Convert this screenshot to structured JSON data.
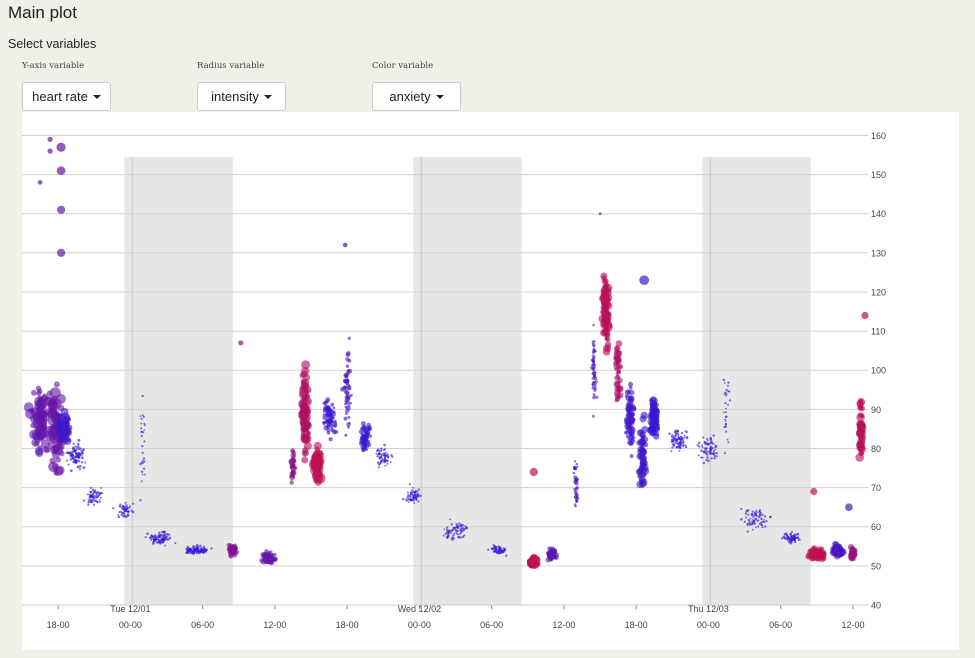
{
  "page": {
    "title": "Main plot",
    "section_label": "Select variables"
  },
  "controls": [
    {
      "label": "Y-axis variable",
      "value": "heart rate"
    },
    {
      "label": "Radius variable",
      "value": "intensity"
    },
    {
      "label": "Color variable",
      "value": "anxiety"
    }
  ],
  "chart_data": {
    "type": "scatter",
    "title": "",
    "xlabel": "",
    "ylabel": "",
    "x_range": [
      "2015-11-30T15:00",
      "2015-12-03T13:00"
    ],
    "ylim": [
      40,
      166
    ],
    "y_ticks": [
      40,
      50,
      60,
      70,
      80,
      90,
      100,
      110,
      120,
      130,
      140,
      150,
      160
    ],
    "x_ticks": [
      {
        "x": "2015-11-30T18:00",
        "label": "18-00"
      },
      {
        "x": "2015-12-01T00:00",
        "label": "00-00",
        "day_label": "Tue 12/01"
      },
      {
        "x": "2015-12-01T06:00",
        "label": "06-00"
      },
      {
        "x": "2015-12-01T12:00",
        "label": "12-00"
      },
      {
        "x": "2015-12-01T18:00",
        "label": "18-00"
      },
      {
        "x": "2015-12-02T00:00",
        "label": "00-00",
        "day_label": "Wed 12/02"
      },
      {
        "x": "2015-12-02T06:00",
        "label": "06-00"
      },
      {
        "x": "2015-12-02T12:00",
        "label": "12-00"
      },
      {
        "x": "2015-12-02T18:00",
        "label": "18-00"
      },
      {
        "x": "2015-12-03T00:00",
        "label": "00-00",
        "day_label": "Thu 12/03"
      },
      {
        "x": "2015-12-03T06:00",
        "label": "06-00"
      },
      {
        "x": "2015-12-03T12:00",
        "label": "12-00"
      }
    ],
    "night_bands": [
      [
        "2015-11-30T23:30",
        "2015-12-01T08:30"
      ],
      [
        "2015-12-01T23:30",
        "2015-12-02T08:30"
      ],
      [
        "2015-12-02T23:30",
        "2015-12-03T08:30"
      ]
    ],
    "colors": {
      "low_anxiety": "#2a1adf",
      "high_anxiety": "#c8104a",
      "night_band": "#e6e6e6",
      "grid": "#d0d0d0"
    },
    "clusters": [
      {
        "x": "2015-11-30T16:30",
        "hr": 88,
        "spread_hr": 12,
        "spread_min": 70,
        "n": 70,
        "size": 0.75,
        "anxiety": 0.35
      },
      {
        "x": "2015-11-30T17:45",
        "hr": 85,
        "spread_hr": 14,
        "spread_min": 40,
        "n": 60,
        "size": 0.8,
        "anxiety": 0.4
      },
      {
        "x": "2015-11-30T18:30",
        "hr": 85,
        "spread_hr": 6,
        "spread_min": 40,
        "n": 80,
        "size": 0.55,
        "anxiety": 0.15
      },
      {
        "x": "2015-11-30T19:30",
        "hr": 78,
        "spread_hr": 5,
        "spread_min": 60,
        "n": 80,
        "size": 0.15,
        "anxiety": 0.1
      },
      {
        "x": "2015-11-30T21:00",
        "hr": 68,
        "spread_hr": 3,
        "spread_min": 60,
        "n": 60,
        "size": 0.12,
        "anxiety": 0.05
      },
      {
        "x": "2015-11-30T23:30",
        "hr": 64,
        "spread_hr": 3,
        "spread_min": 60,
        "n": 50,
        "size": 0.12,
        "anxiety": 0.05
      },
      {
        "x": "2015-12-01T01:00",
        "hr": 80,
        "spread_hr": 18,
        "spread_min": 20,
        "n": 30,
        "size": 0.1,
        "anxiety": 0.05
      },
      {
        "x": "2015-12-01T02:30",
        "hr": 57,
        "spread_hr": 2,
        "spread_min": 90,
        "n": 70,
        "size": 0.15,
        "anxiety": 0.05
      },
      {
        "x": "2015-12-01T05:30",
        "hr": 54,
        "spread_hr": 1.5,
        "spread_min": 90,
        "n": 80,
        "size": 0.15,
        "anxiety": 0.05
      },
      {
        "x": "2015-12-01T08:30",
        "hr": 54,
        "spread_hr": 2,
        "spread_min": 30,
        "n": 60,
        "size": 0.35,
        "anxiety": 0.55
      },
      {
        "x": "2015-12-01T11:30",
        "hr": 52,
        "spread_hr": 2,
        "spread_min": 50,
        "n": 70,
        "size": 0.35,
        "anxiety": 0.35
      },
      {
        "x": "2015-12-01T13:30",
        "hr": 75,
        "spread_hr": 8,
        "spread_min": 15,
        "n": 30,
        "size": 0.4,
        "anxiety": 0.6
      },
      {
        "x": "2015-12-01T14:30",
        "hr": 90,
        "spread_hr": 15,
        "spread_min": 25,
        "n": 80,
        "size": 0.7,
        "anxiety": 0.85
      },
      {
        "x": "2015-12-01T15:30",
        "hr": 76,
        "spread_hr": 6,
        "spread_min": 20,
        "n": 50,
        "size": 0.85,
        "anxiety": 0.95
      },
      {
        "x": "2015-12-01T16:30",
        "hr": 88,
        "spread_hr": 6,
        "spread_min": 40,
        "n": 70,
        "size": 0.3,
        "anxiety": 0.1
      },
      {
        "x": "2015-12-01T18:00",
        "hr": 95,
        "spread_hr": 15,
        "spread_min": 25,
        "n": 50,
        "size": 0.3,
        "anxiety": 0.2
      },
      {
        "x": "2015-12-01T19:30",
        "hr": 83,
        "spread_hr": 5,
        "spread_min": 30,
        "n": 60,
        "size": 0.3,
        "anxiety": 0.1
      },
      {
        "x": "2015-12-01T21:00",
        "hr": 78,
        "spread_hr": 4,
        "spread_min": 60,
        "n": 60,
        "size": 0.12,
        "anxiety": 0.05
      },
      {
        "x": "2015-12-01T23:30",
        "hr": 68,
        "spread_hr": 3,
        "spread_min": 60,
        "n": 60,
        "size": 0.12,
        "anxiety": 0.05
      },
      {
        "x": "2015-12-02T03:00",
        "hr": 59,
        "spread_hr": 3,
        "spread_min": 90,
        "n": 70,
        "size": 0.12,
        "anxiety": 0.05
      },
      {
        "x": "2015-12-02T06:30",
        "hr": 54,
        "spread_hr": 2,
        "spread_min": 60,
        "n": 50,
        "size": 0.15,
        "anxiety": 0.05
      },
      {
        "x": "2015-12-02T09:30",
        "hr": 51,
        "spread_hr": 1.5,
        "spread_min": 30,
        "n": 80,
        "size": 0.5,
        "anxiety": 0.95
      },
      {
        "x": "2015-12-02T11:00",
        "hr": 53,
        "spread_hr": 2,
        "spread_min": 30,
        "n": 60,
        "size": 0.4,
        "anxiety": 0.3
      },
      {
        "x": "2015-12-02T13:00",
        "hr": 70,
        "spread_hr": 12,
        "spread_min": 15,
        "n": 30,
        "size": 0.25,
        "anxiety": 0.2
      },
      {
        "x": "2015-12-02T14:30",
        "hr": 100,
        "spread_hr": 15,
        "spread_min": 15,
        "n": 50,
        "size": 0.2,
        "anxiety": 0.2
      },
      {
        "x": "2015-12-02T15:30",
        "hr": 115,
        "spread_hr": 12,
        "spread_min": 20,
        "n": 110,
        "size": 0.6,
        "anxiety": 0.9
      },
      {
        "x": "2015-12-02T16:30",
        "hr": 100,
        "spread_hr": 12,
        "spread_min": 20,
        "n": 50,
        "size": 0.45,
        "anxiety": 0.8
      },
      {
        "x": "2015-12-02T17:30",
        "hr": 88,
        "spread_hr": 12,
        "spread_min": 30,
        "n": 70,
        "size": 0.45,
        "anxiety": 0.15
      },
      {
        "x": "2015-12-02T18:30",
        "hr": 78,
        "spread_hr": 12,
        "spread_min": 25,
        "n": 60,
        "size": 0.55,
        "anxiety": 0.15
      },
      {
        "x": "2015-12-02T19:30",
        "hr": 88,
        "spread_hr": 7,
        "spread_min": 25,
        "n": 110,
        "size": 0.5,
        "anxiety": 0.1
      },
      {
        "x": "2015-12-02T21:30",
        "hr": 82,
        "spread_hr": 4,
        "spread_min": 60,
        "n": 80,
        "size": 0.12,
        "anxiety": 0.05
      },
      {
        "x": "2015-12-03T00:00",
        "hr": 80,
        "spread_hr": 4,
        "spread_min": 60,
        "n": 70,
        "size": 0.12,
        "anxiety": 0.05
      },
      {
        "x": "2015-12-03T01:30",
        "hr": 90,
        "spread_hr": 15,
        "spread_min": 20,
        "n": 30,
        "size": 0.1,
        "anxiety": 0.05
      },
      {
        "x": "2015-12-03T04:00",
        "hr": 62,
        "spread_hr": 4,
        "spread_min": 90,
        "n": 70,
        "size": 0.12,
        "anxiety": 0.05
      },
      {
        "x": "2015-12-03T07:00",
        "hr": 57,
        "spread_hr": 2,
        "spread_min": 60,
        "n": 50,
        "size": 0.15,
        "anxiety": 0.05
      },
      {
        "x": "2015-12-03T09:00",
        "hr": 53,
        "spread_hr": 2,
        "spread_min": 50,
        "n": 90,
        "size": 0.55,
        "anxiety": 0.95
      },
      {
        "x": "2015-12-03T10:45",
        "hr": 54,
        "spread_hr": 2,
        "spread_min": 30,
        "n": 80,
        "size": 0.55,
        "anxiety": 0.2
      },
      {
        "x": "2015-12-03T12:00",
        "hr": 53,
        "spread_hr": 2,
        "spread_min": 20,
        "n": 40,
        "size": 0.45,
        "anxiety": 0.7
      },
      {
        "x": "2015-12-03T12:40",
        "hr": 85,
        "spread_hr": 12,
        "spread_min": 12,
        "n": 60,
        "size": 0.6,
        "anxiety": 0.9
      }
    ],
    "outliers": [
      {
        "x": "2015-11-30T18:15",
        "hr": 157,
        "size": 0.8,
        "anxiety": 0.4
      },
      {
        "x": "2015-11-30T18:15",
        "hr": 151,
        "size": 0.75,
        "anxiety": 0.4
      },
      {
        "x": "2015-11-30T18:15",
        "hr": 141,
        "size": 0.7,
        "anxiety": 0.4
      },
      {
        "x": "2015-11-30T18:15",
        "hr": 130,
        "size": 0.7,
        "anxiety": 0.4
      },
      {
        "x": "2015-11-30T17:20",
        "hr": 159,
        "size": 0.4,
        "anxiety": 0.4
      },
      {
        "x": "2015-11-30T17:20",
        "hr": 156,
        "size": 0.4,
        "anxiety": 0.4
      },
      {
        "x": "2015-11-30T16:30",
        "hr": 148,
        "size": 0.35,
        "anxiety": 0.4
      },
      {
        "x": "2015-12-01T17:50",
        "hr": 132,
        "size": 0.35,
        "anxiety": 0.2
      },
      {
        "x": "2015-12-01T09:10",
        "hr": 107,
        "size": 0.4,
        "anxiety": 0.7
      },
      {
        "x": "2015-12-02T09:30",
        "hr": 74,
        "size": 0.7,
        "anxiety": 0.9
      },
      {
        "x": "2015-12-02T15:00",
        "hr": 140,
        "size": 0.15,
        "anxiety": 0.3
      },
      {
        "x": "2015-12-02T18:40",
        "hr": 123,
        "size": 0.85,
        "anxiety": 0.15
      },
      {
        "x": "2015-12-03T08:45",
        "hr": 69,
        "size": 0.6,
        "anxiety": 0.9
      },
      {
        "x": "2015-12-03T11:40",
        "hr": 65,
        "size": 0.65,
        "anxiety": 0.2
      },
      {
        "x": "2015-12-03T13:00",
        "hr": 114,
        "size": 0.6,
        "anxiety": 0.9
      }
    ]
  }
}
